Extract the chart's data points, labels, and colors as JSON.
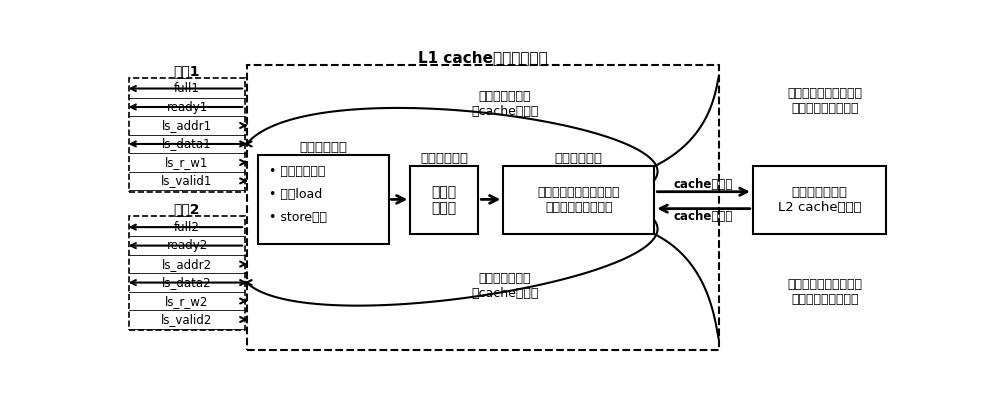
{
  "title": "L1 cache的三级流水线",
  "channel1_label": "通道1",
  "channel2_label": "通道2",
  "channel1_signals": [
    "full1",
    "ready1",
    "ls_addr1",
    "ls_data1",
    "ls_r_w1",
    "ls_valid1"
  ],
  "channel2_signals": [
    "full2",
    "ready2",
    "ls_addr2",
    "ls_data2",
    "ls_r_w2",
    "ls_valid2"
  ],
  "channel1_directions": [
    "left",
    "left",
    "right",
    "both",
    "right",
    "right"
  ],
  "channel2_directions": [
    "left",
    "left",
    "right",
    "both",
    "right",
    "right"
  ],
  "stage1_title": "流水线第一级",
  "stage1_bullets": [
    "标记冲突地址",
    "乱序load",
    "store覆盖"
  ],
  "stage2_title": "流水线第二级",
  "stage2_text": "记录命\n中信息",
  "stage3_title": "流水线第三级",
  "stage3_text": "分情况进行操作，返回端\n口需要的信号或数据",
  "storage_text": "更底层存储，如\nL2 cache或主存",
  "arrow_write": "cache写更新",
  "arrow_read": "cache读更新",
  "annotation_hit_top": "命中时，返回当\n前cache中数据",
  "annotation_miss_top": "未命中时，直接返回底\n层取出的数据到端口",
  "annotation_hit_bot": "命中时，返回当\n前cache中数据",
  "annotation_miss_bot": "未命中时，直接返回底\n层取出的数据到端口",
  "bg_color": "#ffffff"
}
